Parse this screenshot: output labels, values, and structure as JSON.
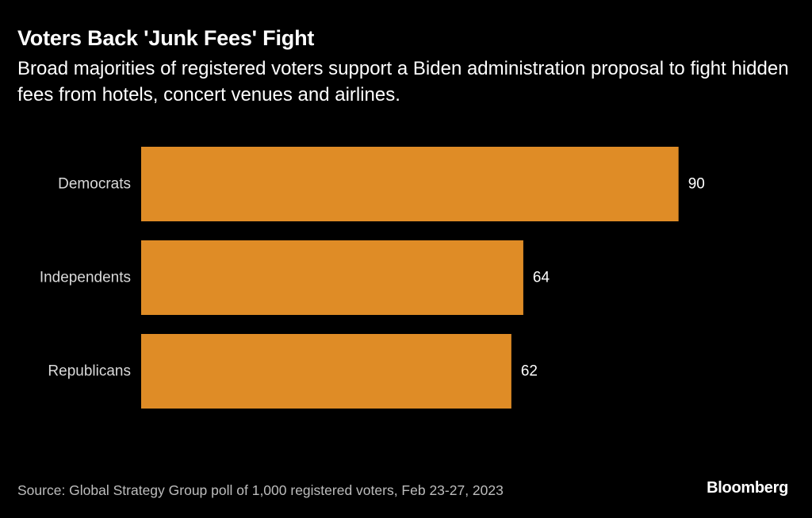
{
  "header": {
    "title": "Voters Back 'Junk Fees' Fight",
    "subtitle": "Broad majorities of registered voters support a Biden administration proposal to fight hidden fees from hotels, concert venues and airlines."
  },
  "footer": {
    "source": "Source: Global Strategy Group poll of 1,000 registered voters, Feb 23-27, 2023",
    "brand": "Bloomberg"
  },
  "colors": {
    "background": "#000000",
    "bar": "#df8c26"
  },
  "chart_data": {
    "type": "bar",
    "orientation": "horizontal",
    "title": "Voters Back 'Junk Fees' Fight",
    "categories": [
      "Democrats",
      "Independents",
      "Republicans"
    ],
    "values": [
      90,
      64,
      62
    ],
    "xlabel": "",
    "ylabel": "",
    "xlim": [
      0,
      100
    ],
    "grid": false,
    "legend": "none"
  }
}
